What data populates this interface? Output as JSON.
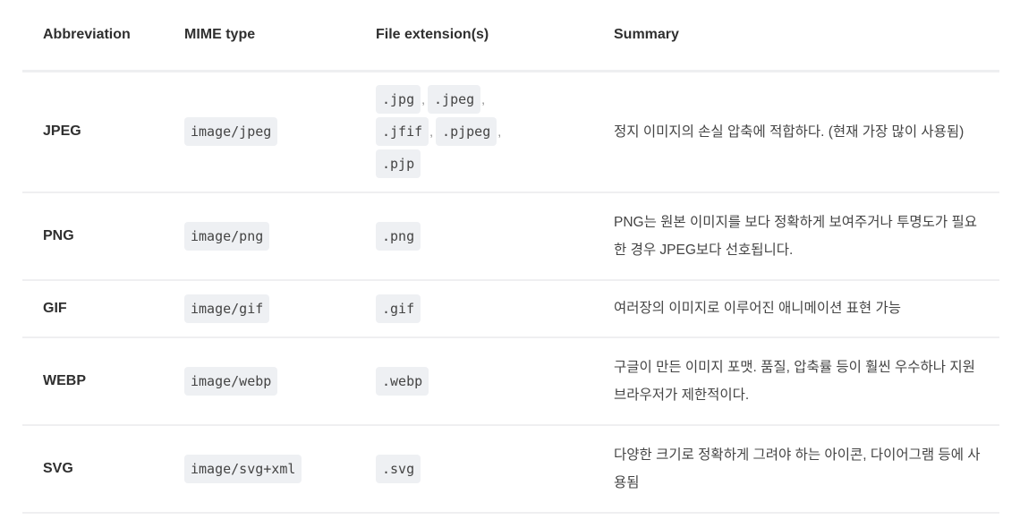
{
  "headers": [
    "Abbreviation",
    "MIME type",
    "File extension(s)",
    "Summary"
  ],
  "rows": [
    {
      "abbr": "JPEG",
      "mime": "image/jpeg",
      "ext": [
        ".jpg",
        ".jpeg",
        ".jfif",
        ".pjpeg",
        ".pjp"
      ],
      "summary": "정지 이미지의 손실 압축에 적합하다. (현재 가장 많이 사용됨)"
    },
    {
      "abbr": "PNG",
      "mime": "image/png",
      "ext": [
        ".png"
      ],
      "summary": "PNG는 원본 이미지를 보다 정확하게 보여주거나 투명도가 필요한 경우 JPEG보다 선호됩니다."
    },
    {
      "abbr": "GIF",
      "mime": "image/gif",
      "ext": [
        ".gif"
      ],
      "summary": "여러장의 이미지로 이루어진 애니메이션 표현 가능"
    },
    {
      "abbr": "WEBP",
      "mime": "image/webp",
      "ext": [
        ".webp"
      ],
      "summary": "구글이 만든 이미지 포맷. 품질, 압축률 등이 훨씬 우수하나 지원 브라우저가 제한적이다."
    },
    {
      "abbr": "SVG",
      "mime": "image/svg+xml",
      "ext": [
        ".svg"
      ],
      "summary": "다양한 크기로 정확하게 그려야 하는 아이콘, 다이어그램 등에 사용됨"
    }
  ]
}
